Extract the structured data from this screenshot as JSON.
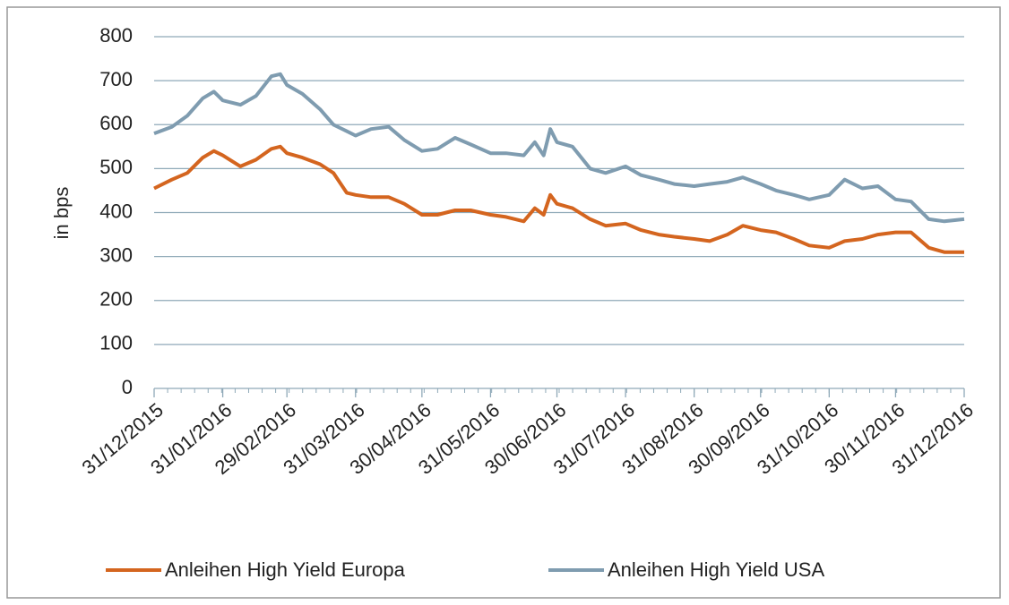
{
  "chart_data": {
    "type": "line",
    "y_label": "in bps",
    "x": [
      "31/12/2015",
      "08/01/2016",
      "15/01/2016",
      "22/01/2016",
      "27/01/2016",
      "31/01/2016",
      "08/02/2016",
      "15/02/2016",
      "22/02/2016",
      "26/02/2016",
      "29/02/2016",
      "07/03/2016",
      "15/03/2016",
      "21/03/2016",
      "27/03/2016",
      "31/03/2016",
      "07/04/2016",
      "15/04/2016",
      "22/04/2016",
      "30/04/2016",
      "07/05/2016",
      "15/05/2016",
      "22/05/2016",
      "31/05/2016",
      "07/06/2016",
      "15/06/2016",
      "20/06/2016",
      "24/06/2016",
      "27/06/2016",
      "30/06/2016",
      "07/07/2016",
      "15/07/2016",
      "22/07/2016",
      "31/07/2016",
      "07/08/2016",
      "15/08/2016",
      "22/08/2016",
      "31/08/2016",
      "07/09/2016",
      "15/09/2016",
      "22/09/2016",
      "30/09/2016",
      "07/10/2016",
      "15/10/2016",
      "22/10/2016",
      "31/10/2016",
      "07/11/2016",
      "15/11/2016",
      "22/11/2016",
      "30/11/2016",
      "07/12/2016",
      "15/12/2016",
      "22/12/2016",
      "31/12/2016"
    ],
    "series": [
      {
        "name": "Anleihen High Yield Europa",
        "color": "#d4651f",
        "values": [
          455,
          475,
          490,
          525,
          540,
          530,
          505,
          520,
          545,
          550,
          535,
          525,
          510,
          490,
          445,
          440,
          435,
          435,
          420,
          395,
          395,
          405,
          405,
          395,
          390,
          380,
          410,
          395,
          440,
          420,
          410,
          385,
          370,
          375,
          360,
          350,
          345,
          340,
          335,
          350,
          370,
          360,
          355,
          340,
          325,
          320,
          335,
          340,
          350,
          355,
          355,
          320,
          310,
          310
        ]
      },
      {
        "name": "Anleihen High Yield USA",
        "color": "#7f9cb0",
        "values": [
          580,
          595,
          620,
          660,
          675,
          655,
          645,
          665,
          710,
          715,
          690,
          670,
          635,
          600,
          585,
          575,
          590,
          595,
          565,
          540,
          545,
          570,
          555,
          535,
          535,
          530,
          560,
          530,
          590,
          560,
          550,
          500,
          490,
          505,
          485,
          475,
          465,
          460,
          465,
          470,
          480,
          465,
          450,
          440,
          430,
          440,
          475,
          455,
          460,
          430,
          425,
          385,
          380,
          385
        ]
      }
    ],
    "xlim": [
      "31/12/2015",
      "31/12/2016"
    ],
    "xticks": [
      "31/12/2015",
      "31/01/2016",
      "29/02/2016",
      "31/03/2016",
      "30/04/2016",
      "31/05/2016",
      "30/06/2016",
      "31/07/2016",
      "31/08/2016",
      "30/09/2016",
      "31/10/2016",
      "30/11/2016",
      "31/12/2016"
    ],
    "ylim": [
      0,
      800
    ],
    "yticks": [
      0,
      100,
      200,
      300,
      400,
      500,
      600,
      700,
      800
    ],
    "grid": true,
    "legend": "bottom"
  }
}
